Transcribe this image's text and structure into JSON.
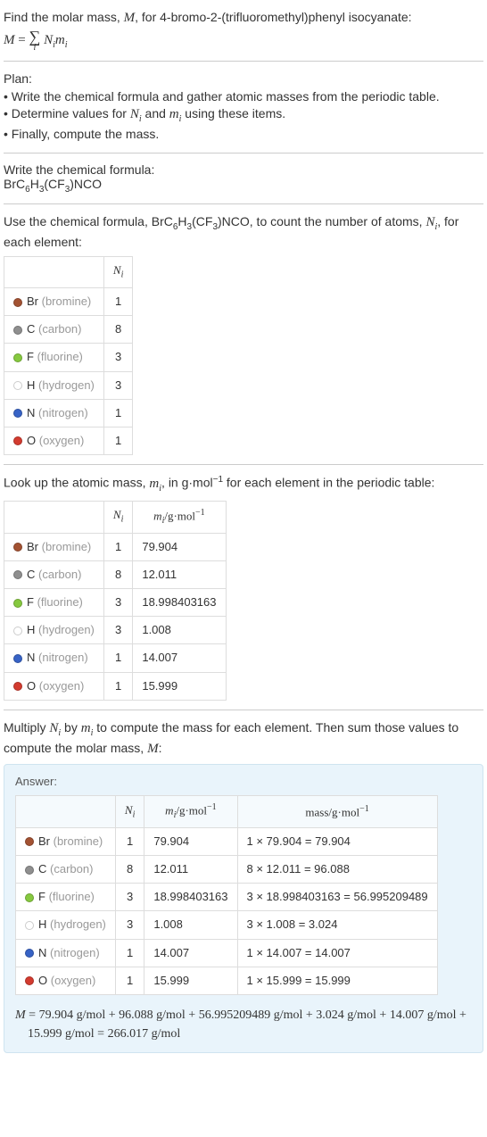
{
  "header": {
    "line1": "Find the molar mass, ",
    "Mvar": "M",
    "line1b": ", for 4-bromo-2-(trifluoromethyl)phenyl isocyanate:"
  },
  "plan": {
    "title": "Plan:",
    "b1": "• Write the chemical formula and gather atomic masses from the periodic table.",
    "b2_a": "• Determine values for ",
    "b2_b": " and ",
    "b2_c": " using these items.",
    "b3": "• Finally, compute the mass."
  },
  "step1": {
    "title": "Write the chemical formula:",
    "formula_parts": [
      "BrC",
      "6",
      "H",
      "3",
      "(CF",
      "3",
      ")NCO"
    ]
  },
  "step2": {
    "text_a": "Use the chemical formula, ",
    "text_b": ", to count the number of atoms, ",
    "text_c": ", for each element:"
  },
  "elements": [
    {
      "sym": "Br",
      "name": "(bromine)",
      "N": "1",
      "m": "79.904",
      "mass": "1 × 79.904 = 79.904",
      "color": "#a35232"
    },
    {
      "sym": "C",
      "name": "(carbon)",
      "N": "8",
      "m": "12.011",
      "mass": "8 × 12.011 = 96.088",
      "color": "#8f8f8f"
    },
    {
      "sym": "F",
      "name": "(fluorine)",
      "N": "3",
      "m": "18.998403163",
      "mass": "3 × 18.998403163 = 56.995209489",
      "color": "#86c93f"
    },
    {
      "sym": "H",
      "name": "(hydrogen)",
      "N": "3",
      "m": "1.008",
      "mass": "3 × 1.008 = 3.024",
      "color": "#ffffff"
    },
    {
      "sym": "N",
      "name": "(nitrogen)",
      "N": "1",
      "m": "14.007",
      "mass": "1 × 14.007 = 14.007",
      "color": "#3763c6"
    },
    {
      "sym": "O",
      "name": "(oxygen)",
      "N": "1",
      "m": "15.999",
      "mass": "1 × 15.999 = 15.999",
      "color": "#d33b2f"
    }
  ],
  "step3": {
    "text_a": "Look up the atomic mass, ",
    "text_b": ", in g·mol",
    "text_c": " for each element in the periodic table:"
  },
  "headers": {
    "Ni": "N",
    "Ni_sub": "i",
    "mi": "m",
    "mi_sub": "i",
    "mi_unit": "/g·mol",
    "neg1": "−1",
    "mass": "mass/g·mol"
  },
  "step4": {
    "text_a": "Multiply ",
    "text_b": " by ",
    "text_c": " to compute the mass for each element. Then sum those values to compute the molar mass, ",
    "text_d": ":"
  },
  "answer": {
    "label": "Answer:",
    "final_a": "M",
    "final_b": " = 79.904 g/mol + 96.088 g/mol + 56.995209489 g/mol + 3.024 g/mol + 14.007 g/mol + 15.999 g/mol = 266.017 g/mol"
  }
}
